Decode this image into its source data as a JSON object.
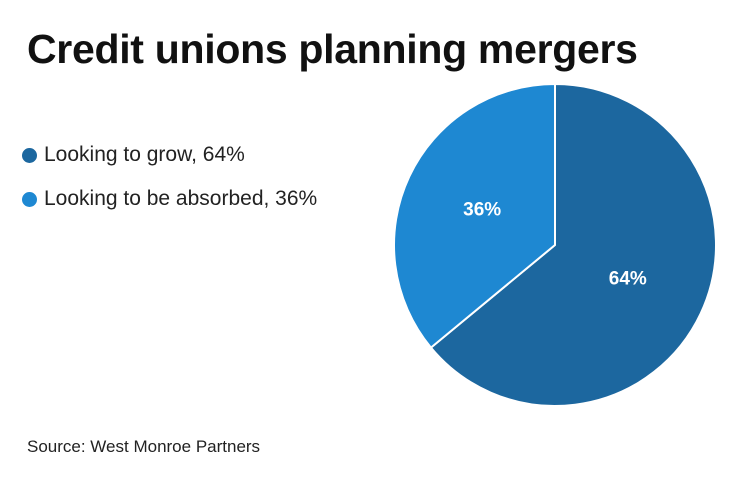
{
  "chart_data": {
    "type": "pie",
    "title": "Credit unions planning mergers",
    "slices": [
      {
        "label": "Looking to grow, 64%",
        "value": 64,
        "display": "64%",
        "color": "#1c679f"
      },
      {
        "label": "Looking to be absorbed, 36%",
        "value": 36,
        "display": "36%",
        "color": "#1e88d2"
      }
    ],
    "legend_position": "left",
    "source": "Source: West Monroe Partners"
  }
}
